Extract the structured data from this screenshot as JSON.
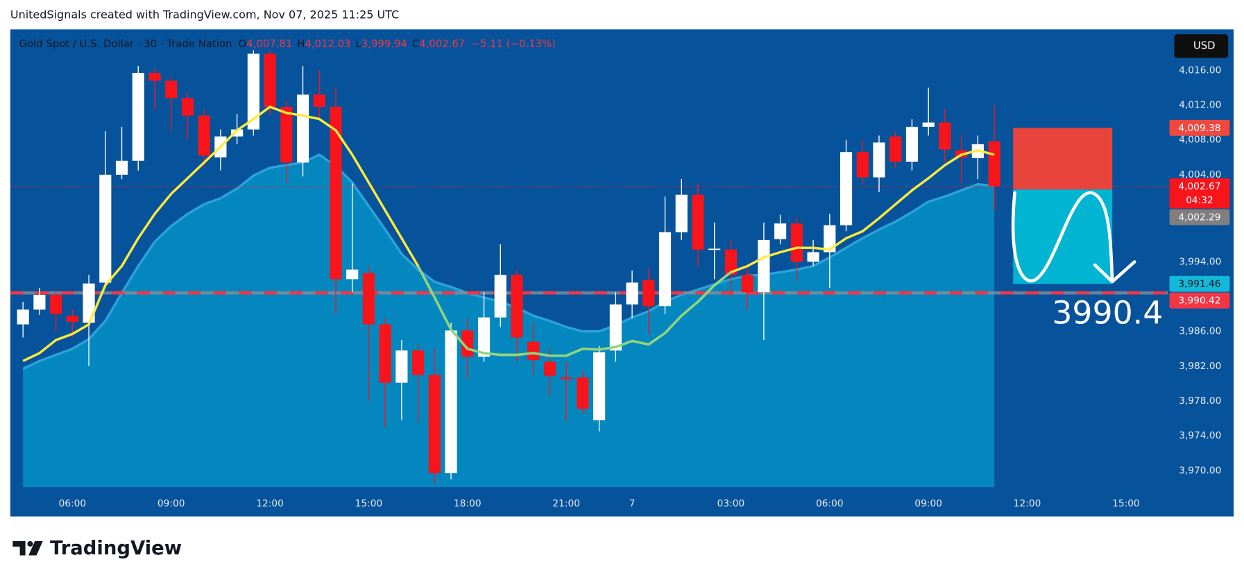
{
  "header": "UnitedSignals created with TradingView.com, Nov 07, 2025 11:25 UTC",
  "chart_data": {
    "type": "candlestick",
    "symbol": "Gold Spot / U.S. Dollar · 30 · Trade Nation",
    "ohlc_legend": [
      {
        "key": "O",
        "label": "4,007.81"
      },
      {
        "key": "H",
        "label": "4,012.03"
      },
      {
        "key": "L",
        "label": "3,999.94"
      },
      {
        "key": "C",
        "label": "4,002.67"
      }
    ],
    "change": "−5.11 (−0.13%)",
    "currency": "USD",
    "categories": [
      null,
      null,
      null,
      "06:00",
      null,
      null,
      null,
      null,
      null,
      "09:00",
      null,
      null,
      null,
      null,
      null,
      "12:00",
      null,
      null,
      null,
      null,
      null,
      "15:00",
      null,
      null,
      null,
      null,
      null,
      "18:00",
      null,
      null,
      null,
      null,
      null,
      "21:00",
      null,
      null,
      null,
      "7",
      null,
      null,
      null,
      null,
      null,
      "03:00",
      null,
      null,
      null,
      null,
      null,
      "06:00",
      null,
      null,
      null,
      null,
      null,
      "09:00",
      null,
      null,
      null,
      null,
      null,
      "12:00",
      null,
      null,
      null,
      null,
      null,
      "15:00"
    ],
    "open": [
      3986.8,
      3988.5,
      3990.2,
      3987.8,
      3987.0,
      3991.6,
      4004.0,
      4005.6,
      4015.7,
      4014.8,
      4012.8,
      4010.8,
      4006.0,
      4008.4,
      4009.2,
      4017.9,
      4011.8,
      4005.4,
      4013.2,
      4011.8,
      3992.0,
      3992.7,
      3986.8,
      3980.1,
      3983.8,
      3981.0,
      3969.7,
      3986.1,
      3983.1,
      3987.6,
      3992.5,
      3984.8,
      3982.5,
      3980.7,
      3980.7,
      3975.8,
      3983.8,
      3989.1,
      3991.9,
      3988.9,
      3997.4,
      4001.7,
      3995.4,
      3995.4,
      3992.5,
      3990.5,
      3996.6,
      3998.4,
      3994.0,
      3995.1,
      3998.2,
      4006.6,
      4003.7,
      4008.4,
      4005.5,
      4009.5,
      4010.0,
      4006.8,
      4005.9,
      4007.81,
      null,
      null,
      null,
      null,
      null,
      null,
      null,
      null
    ],
    "high": [
      3989.4,
      3991.0,
      3990.8,
      3988.5,
      3992.5,
      4009.0,
      4009.5,
      4016.5,
      4016.2,
      4015.2,
      4013.5,
      4011.5,
      4009.2,
      4011.0,
      4018.3,
      4018.3,
      4012.5,
      4016.5,
      4016.0,
      4014.0,
      4003.0,
      3993.5,
      3987.5,
      3985.0,
      3984.5,
      3984.0,
      3987.0,
      3987.5,
      3990.5,
      3996.0,
      3993.0,
      3987.0,
      3984.0,
      3982.5,
      3981.5,
      3984.3,
      3990.5,
      3993.0,
      3993.2,
      4001.5,
      4003.5,
      4003.0,
      3998.5,
      3996.5,
      3993.5,
      3998.5,
      3999.4,
      3999.1,
      3996.5,
      3999.5,
      4008.0,
      4008.0,
      4008.5,
      4009.0,
      4010.4,
      4014.0,
      4011.5,
      4008.6,
      4008.5,
      4012.03,
      null,
      null,
      null,
      null,
      null,
      null,
      null,
      null
    ],
    "low": [
      3985.3,
      3987.9,
      3986.0,
      3985.3,
      3982.0,
      3991.0,
      4003.5,
      4004.5,
      4011.5,
      4009.0,
      4008.0,
      4005.0,
      4004.5,
      4007.5,
      4008.5,
      4010.8,
      4003.0,
      4003.8,
      4010.5,
      3988.0,
      3990.5,
      3978.0,
      3975.0,
      3975.8,
      3975.5,
      3968.5,
      3969.0,
      3980.5,
      3982.5,
      3986.5,
      3982.5,
      3981.0,
      3978.5,
      3975.8,
      3976.5,
      3974.5,
      3982.5,
      3987.5,
      3985.7,
      3988.0,
      3996.5,
      3993.5,
      3992.0,
      3990.0,
      3988.5,
      3985.0,
      3996.0,
      3991.8,
      3993.5,
      3991.0,
      3997.5,
      4003.0,
      4002.0,
      4004.8,
      4004.5,
      4008.5,
      4005.5,
      4003.0,
      4003.5,
      3999.94,
      null,
      null,
      null,
      null,
      null,
      null,
      null,
      null
    ],
    "close": [
      3988.5,
      3990.2,
      3988.0,
      3987.1,
      3991.5,
      4004.0,
      4005.6,
      4015.7,
      4014.8,
      4012.8,
      4010.8,
      4006.2,
      4008.4,
      4009.2,
      4017.9,
      4011.8,
      4005.4,
      4013.2,
      4011.8,
      3992.0,
      3993.1,
      3986.8,
      3980.1,
      3983.8,
      3981.0,
      3969.7,
      3986.1,
      3983.1,
      3987.6,
      3992.5,
      3985.3,
      3982.7,
      3980.9,
      3980.5,
      3977.1,
      3983.6,
      3989.1,
      3991.6,
      3988.9,
      3997.4,
      4001.7,
      3995.4,
      3995.5,
      3992.5,
      3990.5,
      3996.5,
      3998.4,
      3994.0,
      3995.1,
      3998.2,
      4006.6,
      4003.7,
      4007.7,
      4005.5,
      4009.5,
      4010.0,
      4006.9,
      4006.0,
      4007.5,
      4002.67,
      null,
      null,
      null,
      null,
      null,
      null,
      null,
      null
    ],
    "up_color": "#ffffff",
    "down_color": "#f7151b",
    "overlays": [
      {
        "kind": "line",
        "color": "#ffeb3b",
        "color_below": "#8fd47e",
        "values": [
          3982.6,
          3983.5,
          3985.0,
          3985.7,
          3986.8,
          3991.3,
          3993.5,
          3996.7,
          3999.5,
          4001.8,
          4003.6,
          4005.4,
          4007.2,
          4009.1,
          4010.4,
          4011.8,
          4011.1,
          4010.8,
          4010.4,
          4009.1,
          4006.3,
          4003.1,
          3999.9,
          3996.7,
          3993.5,
          3989.9,
          3986.2,
          3984.0,
          3983.5,
          3983.3,
          3983.3,
          3983.5,
          3983.2,
          3983.2,
          3984.0,
          3983.9,
          3984.2,
          3984.9,
          3984.5,
          3985.8,
          3987.8,
          3989.4,
          3991.3,
          3992.8,
          3993.5,
          3994.5,
          3995.1,
          3995.6,
          3995.6,
          3995.4,
          3996.7,
          3997.5,
          3999.0,
          4000.6,
          4002.2,
          4003.6,
          4005.1,
          4006.3,
          4006.8,
          4006.3,
          null,
          null,
          null,
          null,
          null,
          null,
          null,
          null
        ]
      },
      {
        "kind": "area",
        "color": "#2ba3d8",
        "fill": "#0487be",
        "values": [
          3981.7,
          3982.6,
          3983.3,
          3984.0,
          3985.1,
          3987.2,
          3990.4,
          3993.5,
          3996.3,
          3998.1,
          3999.5,
          4000.6,
          4001.3,
          4002.4,
          4003.9,
          4004.8,
          4005.1,
          4005.4,
          4006.3,
          4005.0,
          4003.1,
          4000.4,
          3997.7,
          3994.9,
          3993.1,
          3991.7,
          3991.1,
          3990.4,
          3989.9,
          3989.4,
          3988.7,
          3987.8,
          3987.2,
          3986.5,
          3986.0,
          3986.0,
          3986.7,
          3987.6,
          3988.3,
          3989.4,
          3990.2,
          3990.8,
          3991.4,
          3992.0,
          3992.4,
          3992.5,
          3992.8,
          3993.1,
          3993.5,
          3994.5,
          3995.6,
          3996.7,
          3997.7,
          3998.6,
          3999.7,
          4000.9,
          4001.5,
          4002.2,
          4002.9,
          4002.7,
          null,
          null,
          null,
          null,
          null,
          null,
          null,
          null
        ]
      }
    ],
    "ylim": [
      3968.1,
      4020.7
    ],
    "yticks": [
      {
        "value": 4016,
        "label": "4,016.00"
      },
      {
        "value": 4012,
        "label": "4,012.00"
      },
      {
        "value": 4008,
        "label": "4,008.00"
      },
      {
        "value": 4004,
        "label": "4,004.00"
      },
      {
        "value": 3994,
        "label": "3,994.00"
      },
      {
        "value": 3986,
        "label": "3,986.00"
      },
      {
        "value": 3982,
        "label": "3,982.00"
      },
      {
        "value": 3978,
        "label": "3,978.00"
      },
      {
        "value": 3974,
        "label": "3,974.00"
      },
      {
        "value": 3970,
        "label": "3,970.00"
      }
    ],
    "price_line": {
      "value": 3990.42,
      "color": "#f23645"
    },
    "price_tags": [
      {
        "value": 4009.38,
        "label": "4,009.38",
        "color": "#f0483f",
        "text_color": "#ffffff"
      },
      {
        "value": 4002.67,
        "label": "4,002.67",
        "color": "#f7151b",
        "text_color": "#ffffff",
        "countdown": "04:32"
      },
      {
        "value": 4002.29,
        "label": "4,002.29",
        "color": "#7f7f7f",
        "text_color": "#ffffff"
      },
      {
        "value": 3991.46,
        "label": "3,991.46",
        "color": "#14b8d8",
        "text_color": "#131722"
      },
      {
        "value": 3990.42,
        "label": "3,990.42",
        "color": "#f23645",
        "text_color": "#ffffff"
      }
    ],
    "position": {
      "stop": 4009.38,
      "entry": 4002.3,
      "target": 3991.46,
      "stop_color": "#f44336",
      "target_color": "#00b4d2"
    },
    "annotation": "3990.4"
  },
  "footer": {
    "logo": "TradingView"
  }
}
